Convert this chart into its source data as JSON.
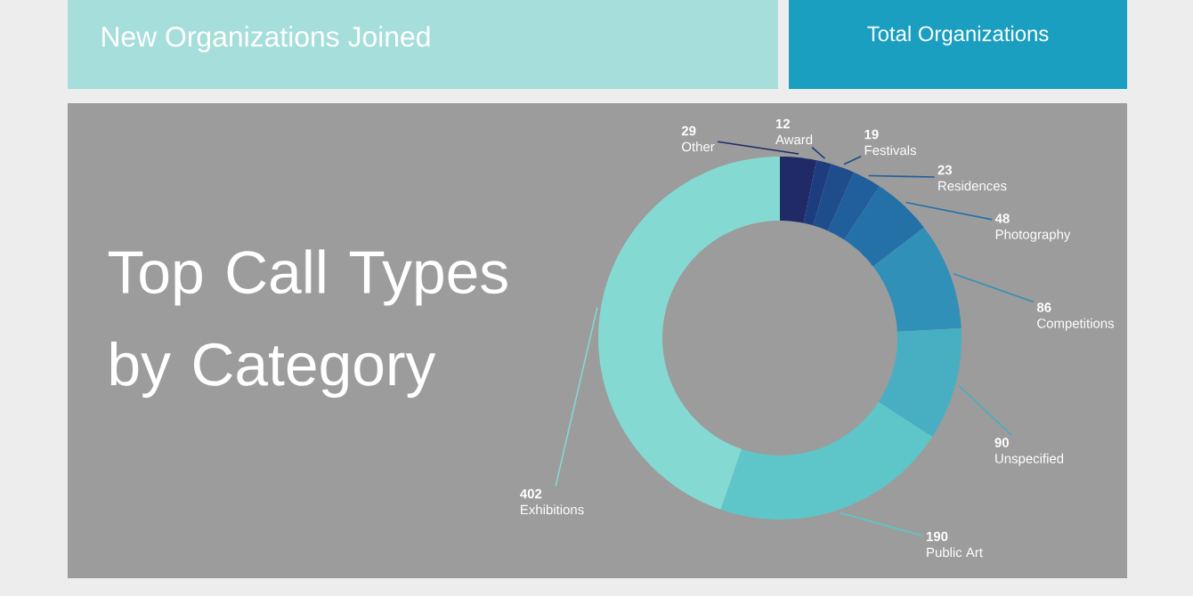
{
  "chart_data": {
    "type": "donut",
    "title": "Top Call Types by Category",
    "categories": [
      "Other",
      "Award",
      "Festivals",
      "Residences",
      "Photography",
      "Competitions",
      "Unspecified",
      "Public Art",
      "Exhibitions"
    ],
    "values": [
      29,
      12,
      19,
      23,
      48,
      86,
      90,
      190,
      402
    ],
    "colors": [
      "#1f2a66",
      "#1d3d7e",
      "#1f4d8c",
      "#215f9c",
      "#2471a8",
      "#3190b8",
      "#48afc2",
      "#5ec6c8",
      "#84dad2"
    ],
    "data_labels": true,
    "annotations": [
      "New Organizations Joined",
      "Total Organizations"
    ]
  }
}
